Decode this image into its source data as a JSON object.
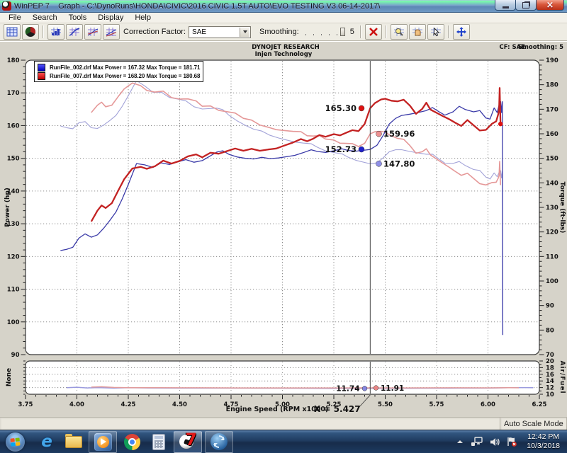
{
  "window": {
    "title": "WinPEP 7    Graph - C:\\DynoRuns\\HONDA\\CIVIC\\2016 CIVIC 1.5T AUTO\\EVO TESTING V3 06-14-2017\\"
  },
  "menu": {
    "items": [
      "File",
      "Search",
      "Tools",
      "Display",
      "Help"
    ]
  },
  "toolbar": {
    "correction_factor_label": "Correction Factor:",
    "correction_factor_value": "SAE",
    "smoothing_label": "Smoothing:",
    "smoothing_value": "5"
  },
  "status_bar": {
    "mode": "Auto Scale Mode"
  },
  "taskbar": {
    "clock_time": "12:42 PM",
    "clock_date": "10/3/2018"
  },
  "chart_data": {
    "type": "line",
    "header": {
      "company": "DYNOJET RESEARCH",
      "subtitle": "Injen Technology",
      "cf": "CF: SAE",
      "smoothing": "Smoothing: 5"
    },
    "legend": [
      {
        "color_top": "#5858ff",
        "color_bottom": "#0000bb",
        "label": "RunFile_002.drf Max Power = 167.32 Max Torque = 181.71"
      },
      {
        "color_top": "#ff5050",
        "color_bottom": "#bb0000",
        "label": "RunFile_007.drf Max Power = 168.20 Max Torque = 180.68"
      }
    ],
    "axes": {
      "x": {
        "label": "Engine Speed (RPM x1000)",
        "min": 3.75,
        "max": 6.25,
        "major": 0.25,
        "minor": 0.05
      },
      "power": {
        "label": "Power (hp)",
        "min": 90,
        "max": 180,
        "major": 10,
        "minor": 2
      },
      "torque": {
        "label": "Torque (ft-lbs)",
        "min": 70,
        "max": 190,
        "major": 10,
        "minor": 2
      },
      "afr": {
        "label": "Air/Fuel",
        "min": 10,
        "max": 20,
        "major": 2,
        "minor": 1
      },
      "none_label": "None"
    },
    "cursor": {
      "x": 5.427,
      "label": "X = 5.427"
    },
    "callouts": [
      {
        "value": "165.30",
        "axis": "power",
        "side": "left",
        "color": "#dd1111"
      },
      {
        "value": "159.96",
        "axis": "torque",
        "side": "right",
        "color": "#ee9090"
      },
      {
        "value": "152.73",
        "axis": "power",
        "side": "left",
        "color": "#2020cc"
      },
      {
        "value": "147.80",
        "axis": "torque",
        "side": "right",
        "color": "#8f8fe8"
      },
      {
        "value": "11.74",
        "axis": "afr",
        "side": "left",
        "color": "#8585e0"
      },
      {
        "value": "11.91",
        "axis": "afr",
        "side": "right",
        "color": "#e88585"
      }
    ],
    "series": [
      {
        "name": "blue-torque",
        "derived_from": "blue-power",
        "axis": "torque",
        "color": "#a2a2d8",
        "width": 1.1
      },
      {
        "name": "red-torque",
        "derived_from": "red-power",
        "axis": "torque",
        "color": "#e59898",
        "width": 1.6
      },
      {
        "name": "blue-power",
        "axis": "power",
        "color": "#3a3aa8",
        "width": 1.3,
        "points": [
          [
            3.92,
            121.8
          ],
          [
            3.95,
            122.2
          ],
          [
            3.98,
            122.8
          ],
          [
            4.01,
            125.6
          ],
          [
            4.04,
            126.9
          ],
          [
            4.07,
            125.9
          ],
          [
            4.1,
            126.6
          ],
          [
            4.13,
            128.6
          ],
          [
            4.16,
            131
          ],
          [
            4.19,
            133.6
          ],
          [
            4.22,
            137.5
          ],
          [
            4.25,
            142
          ],
          [
            4.29,
            148.4
          ],
          [
            4.33,
            148
          ],
          [
            4.37,
            147.2
          ],
          [
            4.41,
            148.6
          ],
          [
            4.45,
            148.1
          ],
          [
            4.49,
            148.9
          ],
          [
            4.53,
            149.6
          ],
          [
            4.57,
            148.8
          ],
          [
            4.61,
            149.3
          ],
          [
            4.64,
            150.4
          ],
          [
            4.68,
            151.9
          ],
          [
            4.71,
            152.3
          ],
          [
            4.74,
            151.2
          ],
          [
            4.78,
            150.4
          ],
          [
            4.82,
            150
          ],
          [
            4.86,
            149.8
          ],
          [
            4.9,
            150.3
          ],
          [
            4.94,
            149.9
          ],
          [
            4.98,
            150.1
          ],
          [
            5.02,
            150.5
          ],
          [
            5.06,
            150.9
          ],
          [
            5.1,
            151.7
          ],
          [
            5.14,
            152.6
          ],
          [
            5.17,
            152.1
          ],
          [
            5.21,
            151.8
          ],
          [
            5.25,
            152.3
          ],
          [
            5.29,
            152.9
          ],
          [
            5.32,
            152.4
          ],
          [
            5.36,
            152.2
          ],
          [
            5.4,
            152.5
          ],
          [
            5.427,
            152.7
          ],
          [
            5.46,
            154
          ],
          [
            5.49,
            157
          ],
          [
            5.52,
            160.5
          ],
          [
            5.55,
            162.2
          ],
          [
            5.58,
            163.1
          ],
          [
            5.62,
            163.5
          ],
          [
            5.66,
            164
          ],
          [
            5.7,
            164.6
          ],
          [
            5.73,
            165.5
          ],
          [
            5.76,
            164.3
          ],
          [
            5.79,
            163.2
          ],
          [
            5.83,
            164.2
          ],
          [
            5.86,
            165.9
          ],
          [
            5.89,
            164.9
          ],
          [
            5.93,
            164.2
          ],
          [
            5.96,
            164.6
          ],
          [
            5.99,
            162.3
          ],
          [
            6.01,
            162
          ],
          [
            6.03,
            165.4
          ],
          [
            6.045,
            164
          ],
          [
            6.055,
            166.5
          ],
          [
            6.062,
            167.3
          ],
          [
            6.066,
            164
          ],
          [
            6.07,
            167.3
          ],
          [
            6.072,
            96
          ]
        ]
      },
      {
        "name": "red-power",
        "axis": "power",
        "color": "#c32222",
        "width": 2.3,
        "points": [
          [
            4.07,
            130.7
          ],
          [
            4.1,
            134
          ],
          [
            4.12,
            135.6
          ],
          [
            4.14,
            134.8
          ],
          [
            4.17,
            136.3
          ],
          [
            4.2,
            140
          ],
          [
            4.23,
            143.6
          ],
          [
            4.27,
            146.9
          ],
          [
            4.31,
            147.4
          ],
          [
            4.34,
            146.8
          ],
          [
            4.38,
            147.6
          ],
          [
            4.42,
            149.3
          ],
          [
            4.46,
            148.4
          ],
          [
            4.5,
            149.2
          ],
          [
            4.54,
            150.6
          ],
          [
            4.58,
            151.2
          ],
          [
            4.61,
            150.3
          ],
          [
            4.65,
            151.7
          ],
          [
            4.69,
            151.4
          ],
          [
            4.73,
            152.2
          ],
          [
            4.77,
            153
          ],
          [
            4.81,
            152.3
          ],
          [
            4.85,
            152.9
          ],
          [
            4.89,
            152.3
          ],
          [
            4.93,
            152.7
          ],
          [
            4.97,
            153
          ],
          [
            5.01,
            153.9
          ],
          [
            5.05,
            154.8
          ],
          [
            5.09,
            155.9
          ],
          [
            5.12,
            155.2
          ],
          [
            5.15,
            156
          ],
          [
            5.18,
            157.1
          ],
          [
            5.21,
            156.6
          ],
          [
            5.25,
            157.4
          ],
          [
            5.28,
            157
          ],
          [
            5.31,
            157.8
          ],
          [
            5.34,
            158.6
          ],
          [
            5.37,
            158.3
          ],
          [
            5.4,
            160.5
          ],
          [
            5.427,
            165.3
          ],
          [
            5.45,
            166.9
          ],
          [
            5.48,
            168
          ],
          [
            5.5,
            168.2
          ],
          [
            5.53,
            167.6
          ],
          [
            5.56,
            167.4
          ],
          [
            5.59,
            167.9
          ],
          [
            5.62,
            166.1
          ],
          [
            5.65,
            163.6
          ],
          [
            5.68,
            165.1
          ],
          [
            5.7,
            167
          ],
          [
            5.72,
            164.9
          ],
          [
            5.75,
            163.9
          ],
          [
            5.78,
            162.9
          ],
          [
            5.81,
            162
          ],
          [
            5.84,
            160.9
          ],
          [
            5.87,
            159.9
          ],
          [
            5.9,
            161.7
          ],
          [
            5.93,
            160.1
          ],
          [
            5.96,
            158.5
          ],
          [
            5.99,
            158.7
          ],
          [
            6.02,
            160.6
          ],
          [
            6.04,
            161.3
          ],
          [
            6.05,
            163.5
          ],
          [
            6.054,
            165
          ],
          [
            6.057,
            171.5
          ],
          [
            6.061,
            160.5
          ]
        ]
      },
      {
        "name": "blue-afr",
        "axis": "afr",
        "color": "#9a9ade",
        "width": 1.5,
        "points": [
          [
            3.95,
            11.95
          ],
          [
            4.0,
            12.1
          ],
          [
            4.05,
            11.9
          ],
          [
            4.1,
            12.0
          ],
          [
            4.18,
            11.85
          ],
          [
            4.25,
            11.95
          ],
          [
            4.35,
            11.9
          ],
          [
            4.5,
            11.88
          ],
          [
            4.7,
            11.85
          ],
          [
            4.9,
            11.83
          ],
          [
            5.1,
            11.8
          ],
          [
            5.25,
            11.77
          ],
          [
            5.35,
            11.75
          ],
          [
            5.427,
            11.74
          ],
          [
            5.55,
            11.78
          ],
          [
            5.7,
            11.82
          ],
          [
            5.85,
            11.85
          ],
          [
            6.0,
            11.88
          ],
          [
            6.1,
            11.95
          ],
          [
            6.18,
            12.0
          ],
          [
            6.22,
            11.98
          ]
        ]
      },
      {
        "name": "red-afr",
        "axis": "afr",
        "color": "#e09a9a",
        "width": 1.5,
        "points": [
          [
            4.07,
            12.15
          ],
          [
            4.12,
            12.25
          ],
          [
            4.18,
            12.05
          ],
          [
            4.25,
            11.98
          ],
          [
            4.4,
            11.95
          ],
          [
            4.6,
            11.93
          ],
          [
            4.8,
            11.9
          ],
          [
            5.0,
            11.9
          ],
          [
            5.2,
            11.89
          ],
          [
            5.3,
            11.9
          ],
          [
            5.427,
            11.91
          ],
          [
            5.55,
            11.9
          ],
          [
            5.7,
            11.92
          ],
          [
            5.85,
            11.94
          ],
          [
            6.0,
            11.92
          ],
          [
            6.1,
            11.95
          ],
          [
            6.15,
            11.94
          ]
        ]
      }
    ],
    "end_marker": {
      "color": "#dd1111"
    }
  }
}
